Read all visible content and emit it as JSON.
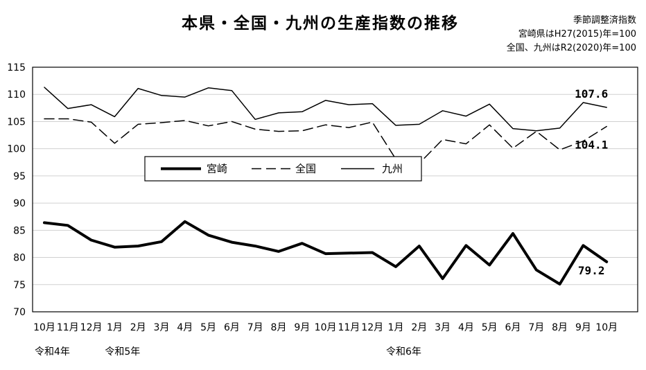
{
  "chart_data": {
    "type": "line",
    "title": "本県・全国・九州の生産指数の推移",
    "notes": [
      "季節調整済指数",
      "宮崎県はH27(2015)年=100",
      "全国、九州はR2(2020)年=100"
    ],
    "categories": [
      "10月",
      "11月",
      "12月",
      "1月",
      "2月",
      "3月",
      "4月",
      "5月",
      "6月",
      "7月",
      "8月",
      "9月",
      "10月",
      "11月",
      "12月",
      "1月",
      "2月",
      "3月",
      "4月",
      "5月",
      "6月",
      "7月",
      "8月",
      "9月",
      "10月"
    ],
    "era_labels": [
      {
        "label": "令和4年",
        "index": 0
      },
      {
        "label": "令和5年",
        "index": 3
      },
      {
        "label": "令和6年",
        "index": 15
      }
    ],
    "ylim": [
      70,
      115
    ],
    "yticks": [
      70,
      75,
      80,
      85,
      90,
      95,
      100,
      105,
      110,
      115
    ],
    "grid": true,
    "legend_position": "middle-left",
    "series": [
      {
        "name": "宮崎",
        "style": "thick-solid",
        "values": [
          86.4,
          85.9,
          83.2,
          81.9,
          82.1,
          82.9,
          86.6,
          84.1,
          82.8,
          82.1,
          81.1,
          82.6,
          80.7,
          80.8,
          80.9,
          78.3,
          82.1,
          76.1,
          82.2,
          78.6,
          84.4,
          77.7,
          75.1,
          82.2,
          79.2
        ]
      },
      {
        "name": "全国",
        "style": "dashed",
        "values": [
          105.5,
          105.5,
          104.9,
          101.0,
          104.5,
          104.8,
          105.2,
          104.2,
          105.0,
          103.6,
          103.2,
          103.3,
          104.4,
          103.9,
          104.9,
          98.1,
          97.3,
          101.7,
          100.9,
          104.4,
          100.1,
          103.2,
          99.8,
          101.4,
          104.1
        ]
      },
      {
        "name": "九州",
        "style": "thin-solid",
        "values": [
          111.3,
          107.4,
          108.1,
          105.9,
          111.1,
          109.8,
          109.5,
          111.2,
          110.7,
          105.4,
          106.6,
          106.8,
          108.9,
          108.1,
          108.3,
          104.3,
          104.5,
          107.0,
          106.0,
          108.2,
          103.7,
          103.3,
          103.8,
          108.5,
          107.6
        ]
      }
    ],
    "annotations": [
      {
        "series": "九州",
        "text": "107.6"
      },
      {
        "series": "全国",
        "text": "104.1"
      },
      {
        "series": "宮崎",
        "text": "79.2"
      }
    ]
  }
}
